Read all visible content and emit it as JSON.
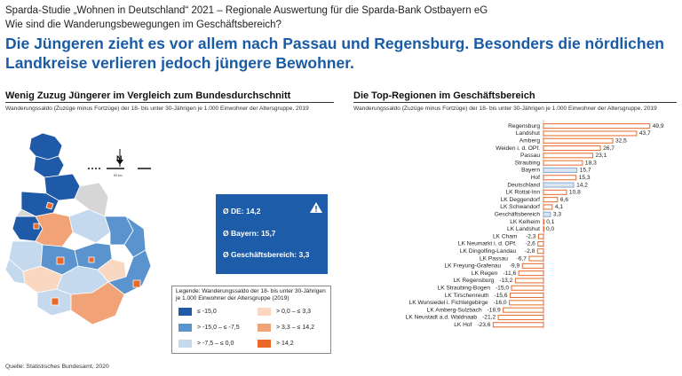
{
  "header": {
    "line1": "Sparda-Studie „Wohnen in Deutschland“ 2021 – Regionale Auswertung für die Sparda-Bank Ostbayern eG",
    "line2": "Wie sind die Wanderungsbewegungen im Geschäftsbereich?",
    "headline": "Die Jüngeren zieht es vor allem nach Passau und Regensburg. Besonders die nördlichen Landkreise verlieren jedoch jüngere Bewohner."
  },
  "left": {
    "title": "Wenig Zuzug Jüngerer im Vergleich zum Bundesdurchschnitt",
    "subtitle": "Wanderungssaldo (Zuzüge minus Fortzüge) der 18- bis unter 30-Jährigen je 1.000 Einwohner der Altersgruppe, 2019",
    "north_label": "N",
    "scale_label": "50 km",
    "stats": {
      "de": "Ø DE: 14,2",
      "bayern": "Ø Bayern: 15,7",
      "gb": "Ø Geschäftsbereich: 3,3"
    },
    "legend": {
      "title": "Legende: Wanderungssaldo der 18- bis unter 30-Jährigen je 1.000 Einwohner der Altersgruppe (2019)",
      "items": [
        {
          "label": "≤ -15,0",
          "color": "#1f5aa8"
        },
        {
          "label": "> -15,0 – ≤ -7,5",
          "color": "#5a93cd"
        },
        {
          "label": "> -7,5 – ≤ 0,0",
          "color": "#c5d9ee"
        },
        {
          "label": "> 0,0 – ≤ 3,3",
          "color": "#f9d7c1"
        },
        {
          "label": "> 3,3 – ≤ 14,2",
          "color": "#f2a277"
        },
        {
          "label": "> 14,2",
          "color": "#e8692a"
        }
      ]
    }
  },
  "right": {
    "title": "Die Top-Regionen im Geschäftsbereich",
    "subtitle": "Wanderungssaldo (Zuzüge minus Fortzüge) der 18- bis unter 30-Jährigen je 1.000 Einwohner der Altersgruppe, 2019"
  },
  "source": "Quelle: Statistisches Bundesamt, 2020",
  "chart_data": {
    "type": "bar",
    "orientation": "horizontal",
    "categories": [
      "Regensburg",
      "Landshut",
      "Amberg",
      "Weiden i. d. OPf.",
      "Passau",
      "Straubing",
      "Bayern",
      "Hof",
      "Deutschland",
      "LK Rottal-Inn",
      "LK Deggendorf",
      "LK Schwandorf",
      "Geschäftsbereich",
      "LK Kelheim",
      "LK Landshut",
      "LK Cham",
      "LK Neumarkt i. d. OPf.",
      "LK Dingolfing-Landau",
      "LK Passau",
      "LK Freyung-Grafenau",
      "LK Regen",
      "LK Regensburg",
      "LK Straubing-Bogen",
      "LK Tirschenreuth",
      "LK Wunsiedel i. Fichtelgebirge",
      "LK Amberg-Sulzbach",
      "LK Neustadt a.d. Waldnaab",
      "LK Hof"
    ],
    "values": [
      49.9,
      43.7,
      32.5,
      26.7,
      23.1,
      18.3,
      15.7,
      15.3,
      14.2,
      10.8,
      6.6,
      4.1,
      3.3,
      0.1,
      0.0,
      -2.3,
      -2.6,
      -2.8,
      -6.7,
      -9.9,
      -11.6,
      -13.2,
      -15.0,
      -15.6,
      -16.0,
      -18.9,
      -21.2,
      -23.6
    ],
    "value_labels": [
      "49,9",
      "43,7",
      "32,5",
      "26,7",
      "23,1",
      "18,3",
      "15,7",
      "15,3",
      "14,2",
      "10,8",
      "6,6",
      "4,1",
      "3,3",
      "0,1",
      "0,0",
      "-2,3",
      "-2,6",
      "-2,8",
      "-6,7",
      "-9,9",
      "-11,6",
      "-13,2",
      "-15,0",
      "-15,6",
      "-16,0",
      "-18,9",
      "-21,2",
      "-23,6"
    ],
    "highlight": [
      "Bayern",
      "Deutschland",
      "Geschäftsbereich"
    ],
    "colors": {
      "bar_border": "#e8692a",
      "bar_fill": "#ffffff",
      "highlight_border": "#8aa9cc",
      "highlight_fill": "#dbe6f3"
    }
  }
}
